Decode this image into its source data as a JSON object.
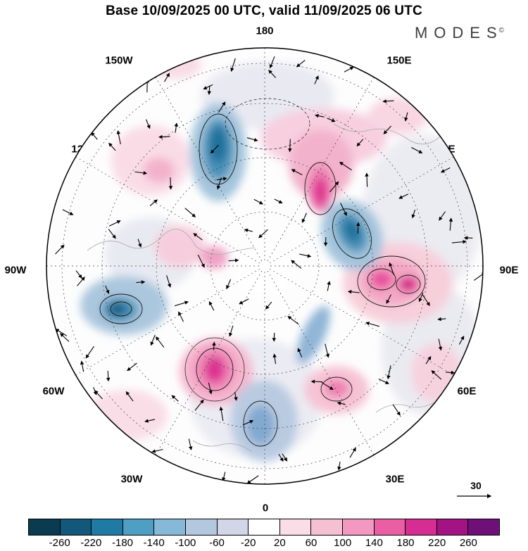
{
  "header": {
    "title": "Base 10/09/2025 00 UTC, valid 11/09/2025 06 UTC",
    "brand": "MODES",
    "brand_mark": "©"
  },
  "map": {
    "meridian_labels": [
      "180",
      "150W",
      "150E",
      "120W",
      "120E",
      "90W",
      "90E",
      "60W",
      "60E",
      "30W",
      "30E",
      "0"
    ]
  },
  "wind_scale": {
    "label": "30"
  },
  "colorbar": {
    "ticks": [
      "-260",
      "-220",
      "-180",
      "-140",
      "-100",
      "-60",
      "-20",
      "20",
      "60",
      "100",
      "140",
      "180",
      "220",
      "260"
    ],
    "colors": [
      "#0b3b50",
      "#13587a",
      "#1f7ba3",
      "#4f9ec3",
      "#86b9d8",
      "#b3c7df",
      "#d3d5e8",
      "#ffffff",
      "#f9dde7",
      "#f6c0d3",
      "#f399c1",
      "#ea5fa3",
      "#d52d91",
      "#a31384",
      "#6e1078"
    ]
  }
}
